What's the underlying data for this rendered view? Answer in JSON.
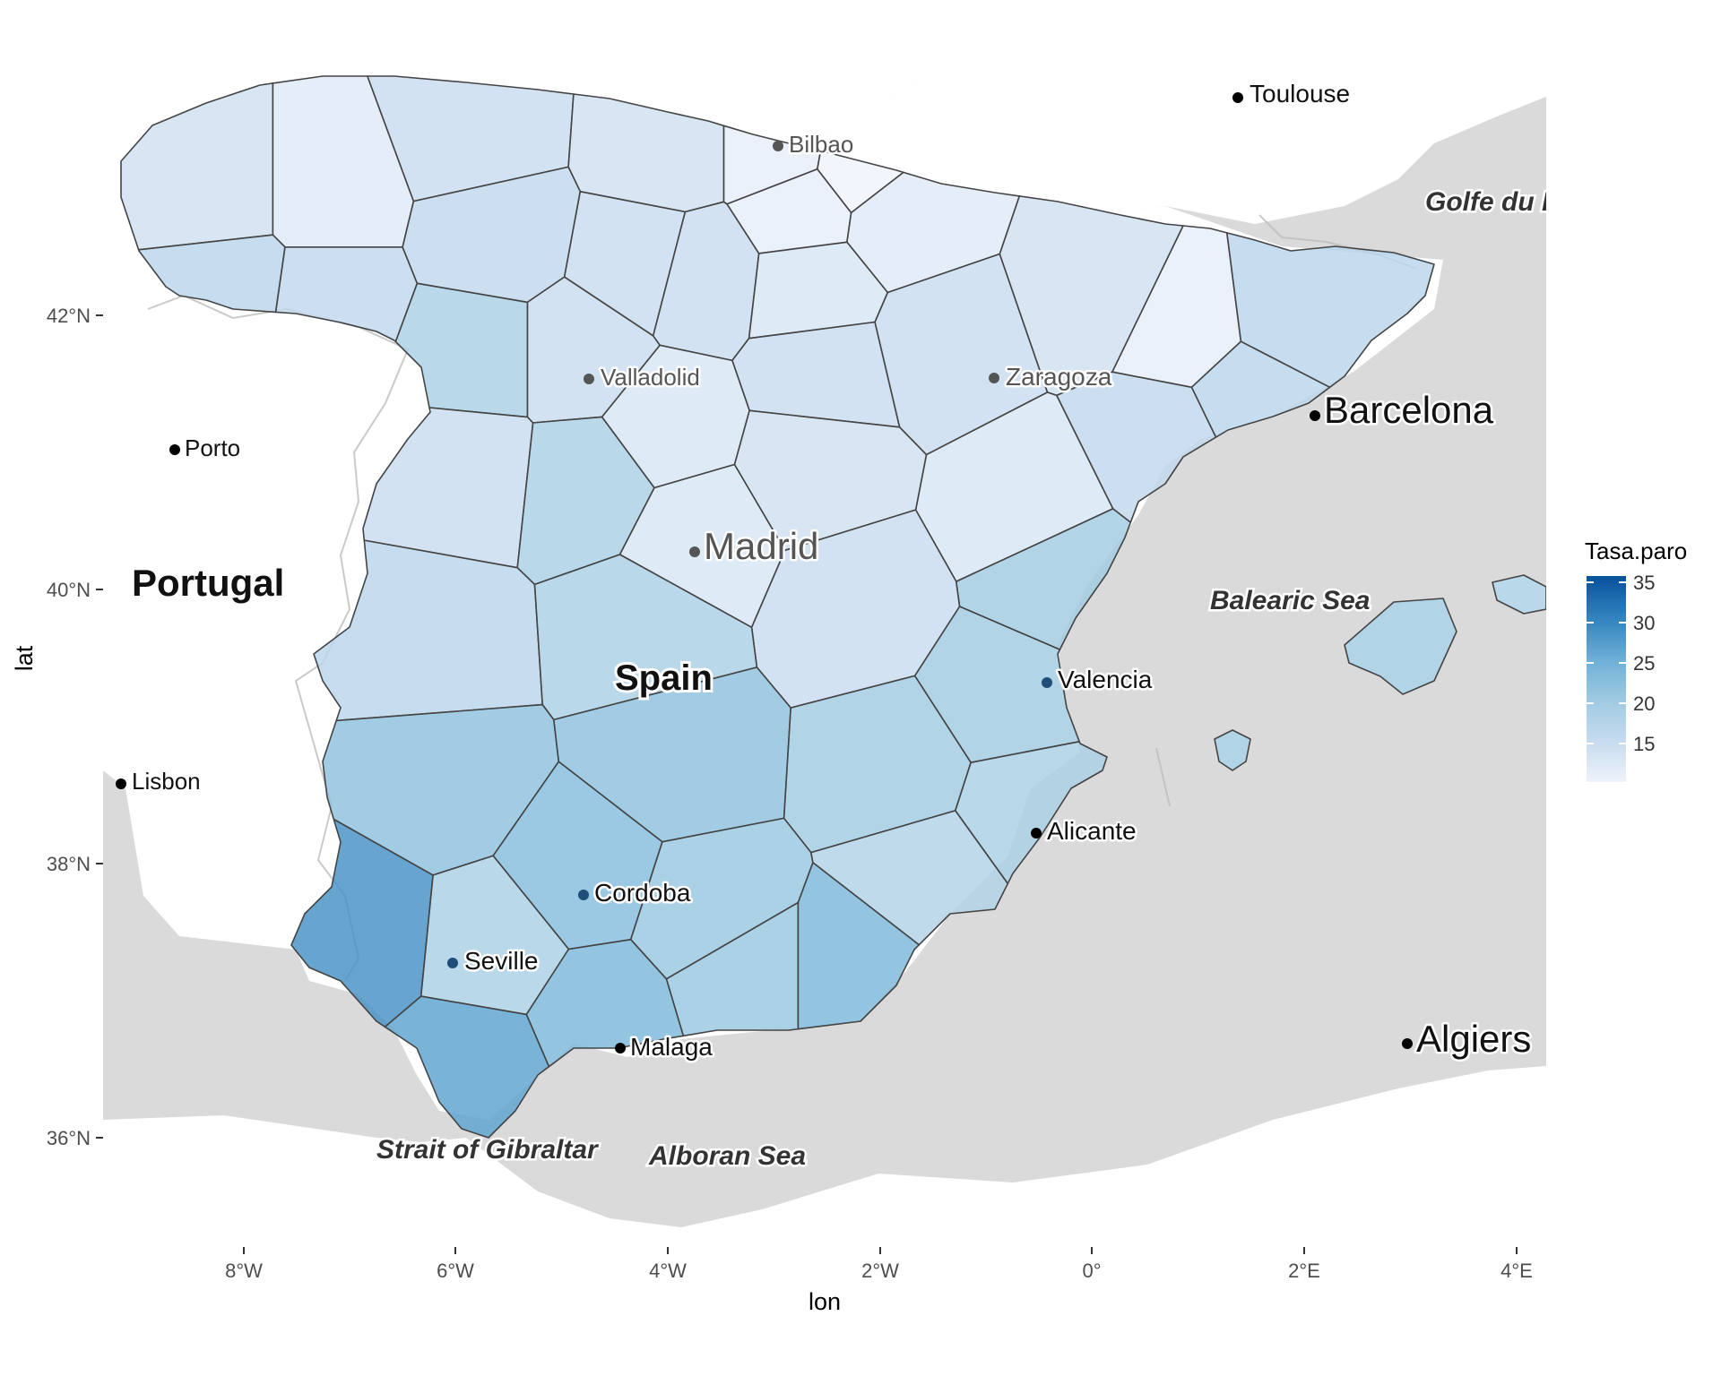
{
  "axes": {
    "xlabel": "lon",
    "ylabel": "lat",
    "x_ticks": [
      "8°W",
      "6°W",
      "4°W",
      "2°W",
      "0°",
      "2°E",
      "4°E"
    ],
    "y_ticks": [
      "36°N",
      "38°N",
      "40°N",
      "42°N"
    ]
  },
  "map_labels": {
    "countries": [
      "Portugal",
      "Spain"
    ],
    "cities": [
      "Toulouse",
      "Bilbao",
      "Valladolid",
      "Zaragoza",
      "Barcelona",
      "Porto",
      "Madrid",
      "Valencia",
      "Lisbon",
      "Alicante",
      "Cordoba",
      "Seville",
      "Malaga",
      "Algiers"
    ],
    "seas": [
      "Golfe du Lion",
      "Balearic Sea",
      "Strait of Gibraltar",
      "Alboran Sea"
    ]
  },
  "legend": {
    "title": "Tasa.paro",
    "breaks": [
      "35",
      "30",
      "25",
      "20",
      "15"
    ],
    "range": [
      10,
      36
    ],
    "color_low": "#eff3fb",
    "color_high": "#08519c"
  },
  "colors": {
    "land_bg": "#ffffff",
    "sea_bg": "#dadada",
    "border": "#444444"
  },
  "chart_data": {
    "type": "heatmap",
    "xlabel": "lon",
    "ylabel": "lat",
    "xlim": [
      -9.3,
      4.3
    ],
    "ylim": [
      35.2,
      43.8
    ],
    "legend_title": "Tasa.paro",
    "regions": [
      {
        "lon": -8.2,
        "lat": 42.9,
        "value": 14
      },
      {
        "lon": -7.2,
        "lat": 42.9,
        "value": 12
      },
      {
        "lon": -8.1,
        "lat": 42.2,
        "value": 17
      },
      {
        "lon": -7.2,
        "lat": 42.1,
        "value": 16
      },
      {
        "lon": -5.8,
        "lat": 43.3,
        "value": 15
      },
      {
        "lon": -4.0,
        "lat": 43.2,
        "value": 14
      },
      {
        "lon": -5.6,
        "lat": 42.6,
        "value": 16
      },
      {
        "lon": -5.8,
        "lat": 41.7,
        "value": 19
      },
      {
        "lon": -4.8,
        "lat": 41.7,
        "value": 15
      },
      {
        "lon": -4.2,
        "lat": 42.4,
        "value": 15
      },
      {
        "lon": -3.7,
        "lat": 42.3,
        "value": 15
      },
      {
        "lon": -2.9,
        "lat": 43.2,
        "value": 11
      },
      {
        "lon": -2.2,
        "lat": 43.1,
        "value": 10
      },
      {
        "lon": -2.7,
        "lat": 42.8,
        "value": 11
      },
      {
        "lon": -1.8,
        "lat": 42.7,
        "value": 12
      },
      {
        "lon": -2.6,
        "lat": 42.2,
        "value": 13
      },
      {
        "lon": -2.5,
        "lat": 41.6,
        "value": 15
      },
      {
        "lon": -1.4,
        "lat": 41.8,
        "value": 15
      },
      {
        "lon": 0.1,
        "lat": 42.2,
        "value": 14
      },
      {
        "lon": 0.9,
        "lat": 41.9,
        "value": 11
      },
      {
        "lon": 1.9,
        "lat": 42.0,
        "value": 17
      },
      {
        "lon": 1.5,
        "lat": 41.4,
        "value": 17
      },
      {
        "lon": 0.7,
        "lat": 41.1,
        "value": 16
      },
      {
        "lon": -0.6,
        "lat": 40.6,
        "value": 13
      },
      {
        "lon": -5.9,
        "lat": 40.9,
        "value": 15
      },
      {
        "lon": -4.7,
        "lat": 40.8,
        "value": 19
      },
      {
        "lon": -4.0,
        "lat": 41.2,
        "value": 13
      },
      {
        "lon": -3.7,
        "lat": 40.4,
        "value": 13
      },
      {
        "lon": -2.6,
        "lat": 40.9,
        "value": 14
      },
      {
        "lon": -2.2,
        "lat": 39.9,
        "value": 15
      },
      {
        "lon": -0.3,
        "lat": 40.1,
        "value": 20
      },
      {
        "lon": -6.2,
        "lat": 39.6,
        "value": 17
      },
      {
        "lon": -4.2,
        "lat": 39.7,
        "value": 19
      },
      {
        "lon": -0.8,
        "lat": 39.2,
        "value": 20
      },
      {
        "lon": -6.1,
        "lat": 38.6,
        "value": 22
      },
      {
        "lon": -3.9,
        "lat": 38.8,
        "value": 22
      },
      {
        "lon": -1.8,
        "lat": 38.7,
        "value": 20
      },
      {
        "lon": -0.6,
        "lat": 38.4,
        "value": 19
      },
      {
        "lon": -4.8,
        "lat": 37.9,
        "value": 23
      },
      {
        "lon": -3.6,
        "lat": 37.6,
        "value": 21
      },
      {
        "lon": -1.5,
        "lat": 37.9,
        "value": 18
      },
      {
        "lon": -6.9,
        "lat": 37.5,
        "value": 29
      },
      {
        "lon": -5.6,
        "lat": 37.4,
        "value": 19
      },
      {
        "lon": -4.6,
        "lat": 36.9,
        "value": 24
      },
      {
        "lon": -3.3,
        "lat": 37.2,
        "value": 21
      },
      {
        "lon": -2.2,
        "lat": 37.2,
        "value": 24
      },
      {
        "lon": -5.8,
        "lat": 36.5,
        "value": 27
      },
      {
        "lon": 2.9,
        "lat": 39.6,
        "value": 20
      },
      {
        "lon": 1.4,
        "lat": 38.9,
        "value": 20
      },
      {
        "lon": 4.1,
        "lat": 39.9,
        "value": 19
      }
    ]
  }
}
